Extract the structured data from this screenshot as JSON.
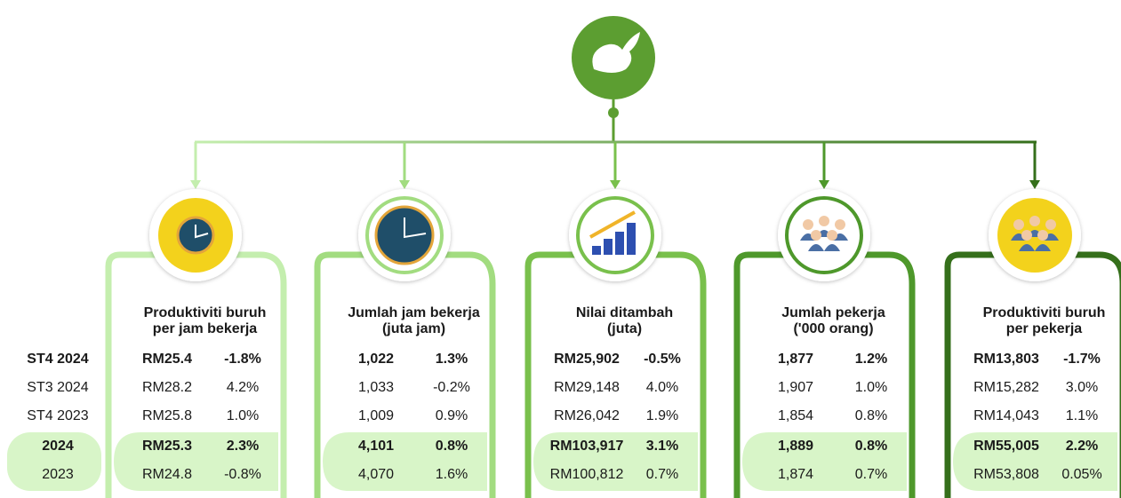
{
  "row_labels": [
    "ST4 2024",
    "ST3 2024",
    "ST4 2023",
    "2024",
    "2023"
  ],
  "cards": [
    {
      "title_lines": [
        "Produktiviti buruh",
        "per jam bekerja"
      ],
      "rows": [
        [
          "RM25.4",
          "-1.8%"
        ],
        [
          "RM28.2",
          "4.2%"
        ],
        [
          "RM25.8",
          "1.0%"
        ],
        [
          "RM25.3",
          "2.3%"
        ],
        [
          "RM24.8",
          "-0.8%"
        ]
      ]
    },
    {
      "title_lines": [
        "Jumlah jam bekerja",
        "(juta jam)"
      ],
      "rows": [
        [
          "1,022",
          "1.3%"
        ],
        [
          "1,033",
          "-0.2%"
        ],
        [
          "1,009",
          "0.9%"
        ],
        [
          "4,101",
          "0.8%"
        ],
        [
          "4,070",
          "1.6%"
        ]
      ]
    },
    {
      "title_lines": [
        "Nilai ditambah",
        "(juta)"
      ],
      "rows": [
        [
          "RM25,902",
          "-0.5%"
        ],
        [
          "RM29,148",
          "4.0%"
        ],
        [
          "RM26,042",
          "1.9%"
        ],
        [
          "RM103,917",
          "3.1%"
        ],
        [
          "RM100,812",
          "0.7%"
        ]
      ]
    },
    {
      "title_lines": [
        "Jumlah pekerja",
        "('000 orang)"
      ],
      "rows": [
        [
          "1,877",
          "1.2%"
        ],
        [
          "1,907",
          "1.0%"
        ],
        [
          "1,854",
          "0.8%"
        ],
        [
          "1,889",
          "0.8%"
        ],
        [
          "1,874",
          "0.7%"
        ]
      ]
    },
    {
      "title_lines": [
        "Produktiviti buruh",
        "per pekerja"
      ],
      "rows": [
        [
          "RM13,803",
          "-1.7%"
        ],
        [
          "RM15,282",
          "3.0%"
        ],
        [
          "RM14,043",
          "1.1%"
        ],
        [
          "RM55,005",
          "2.2%"
        ],
        [
          "RM53,808",
          "0.05%"
        ]
      ]
    }
  ]
}
